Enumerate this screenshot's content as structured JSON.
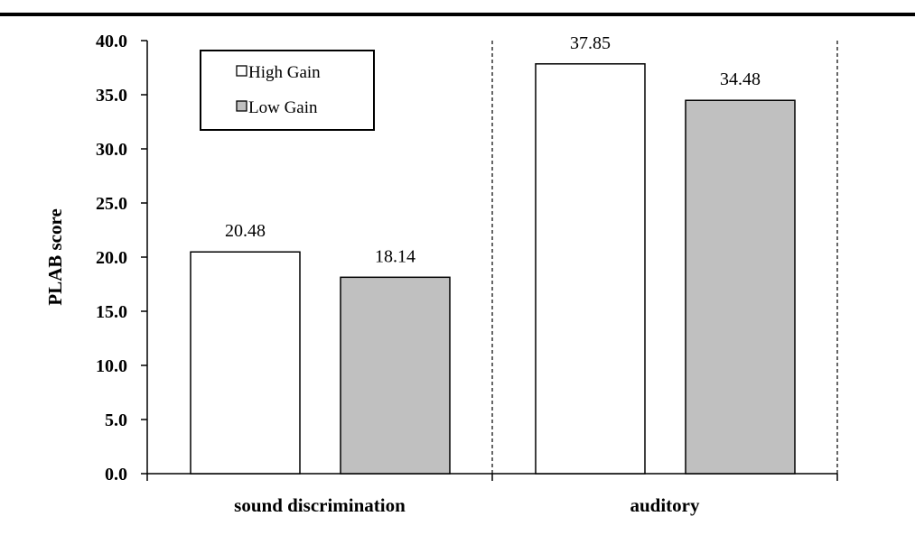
{
  "chart_data": {
    "type": "bar",
    "categories": [
      "sound discrimination",
      "auditory"
    ],
    "series": [
      {
        "name": "High Gain",
        "values": [
          20.48,
          37.85
        ],
        "color": "#ffffff"
      },
      {
        "name": "Low Gain",
        "values": [
          18.14,
          34.48
        ],
        "color": "#c0c0c0"
      }
    ],
    "data_labels": [
      [
        "20.48",
        "37.85"
      ],
      [
        "18.14",
        "34.48"
      ]
    ],
    "ylabel": "PLAB score",
    "xlabel": "",
    "ylim": [
      0,
      40
    ],
    "yticks": [
      "0.0",
      "5.0",
      "10.0",
      "15.0",
      "20.0",
      "25.0",
      "30.0",
      "35.0",
      "40.0"
    ],
    "legend_position": "top-left",
    "grid": false,
    "category_separators": "dashed"
  }
}
